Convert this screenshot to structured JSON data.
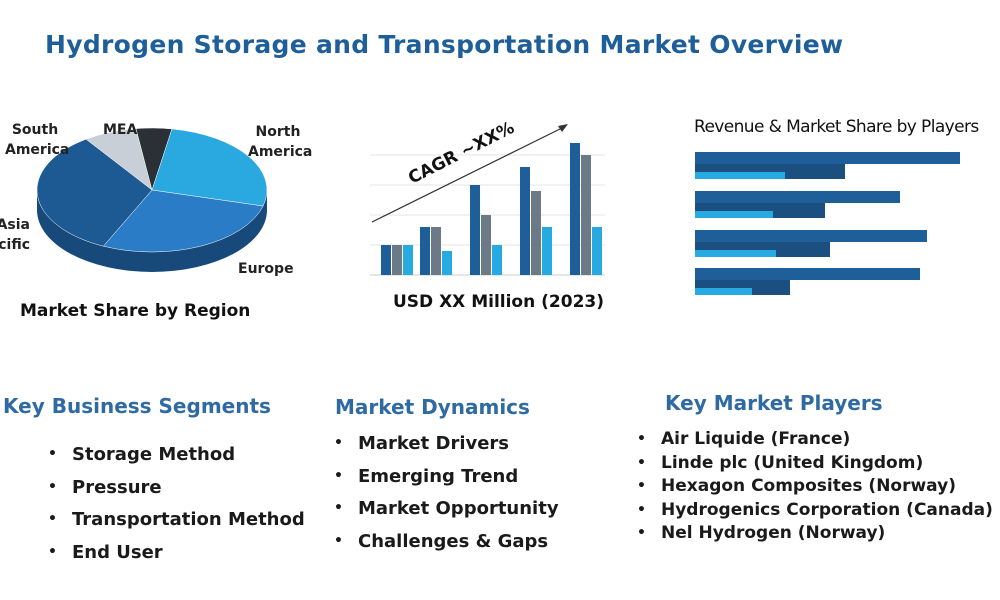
{
  "title": "Hydrogen Storage and Transportation Market Overview",
  "region_chart": {
    "labels": [
      "South America",
      "MEA",
      "North America",
      "Asia Pacific",
      "Europe"
    ],
    "caption": "Market Share by Region"
  },
  "growth_chart": {
    "annotation": "CAGR ~XX%",
    "caption": "USD XX Million (2023)"
  },
  "players_chart": {
    "title": "Revenue & Market Share by Players"
  },
  "segments": {
    "heading": "Key Business Segments",
    "items": [
      "Storage Method",
      "Pressure",
      "Transportation Method",
      "End User"
    ]
  },
  "dynamics": {
    "heading": "Market Dynamics",
    "items": [
      "Market Drivers",
      "Emerging Trend",
      "Market Opportunity",
      "Challenges & Gaps"
    ]
  },
  "players": {
    "heading": "Key Market Players",
    "items": [
      "Air Liquide (France)",
      "Linde plc (United Kingdom)",
      "Hexagon Composites (Norway)",
      "Hydrogenics Corporation (Canada)",
      "Nel Hydrogen (Norway)"
    ]
  }
}
